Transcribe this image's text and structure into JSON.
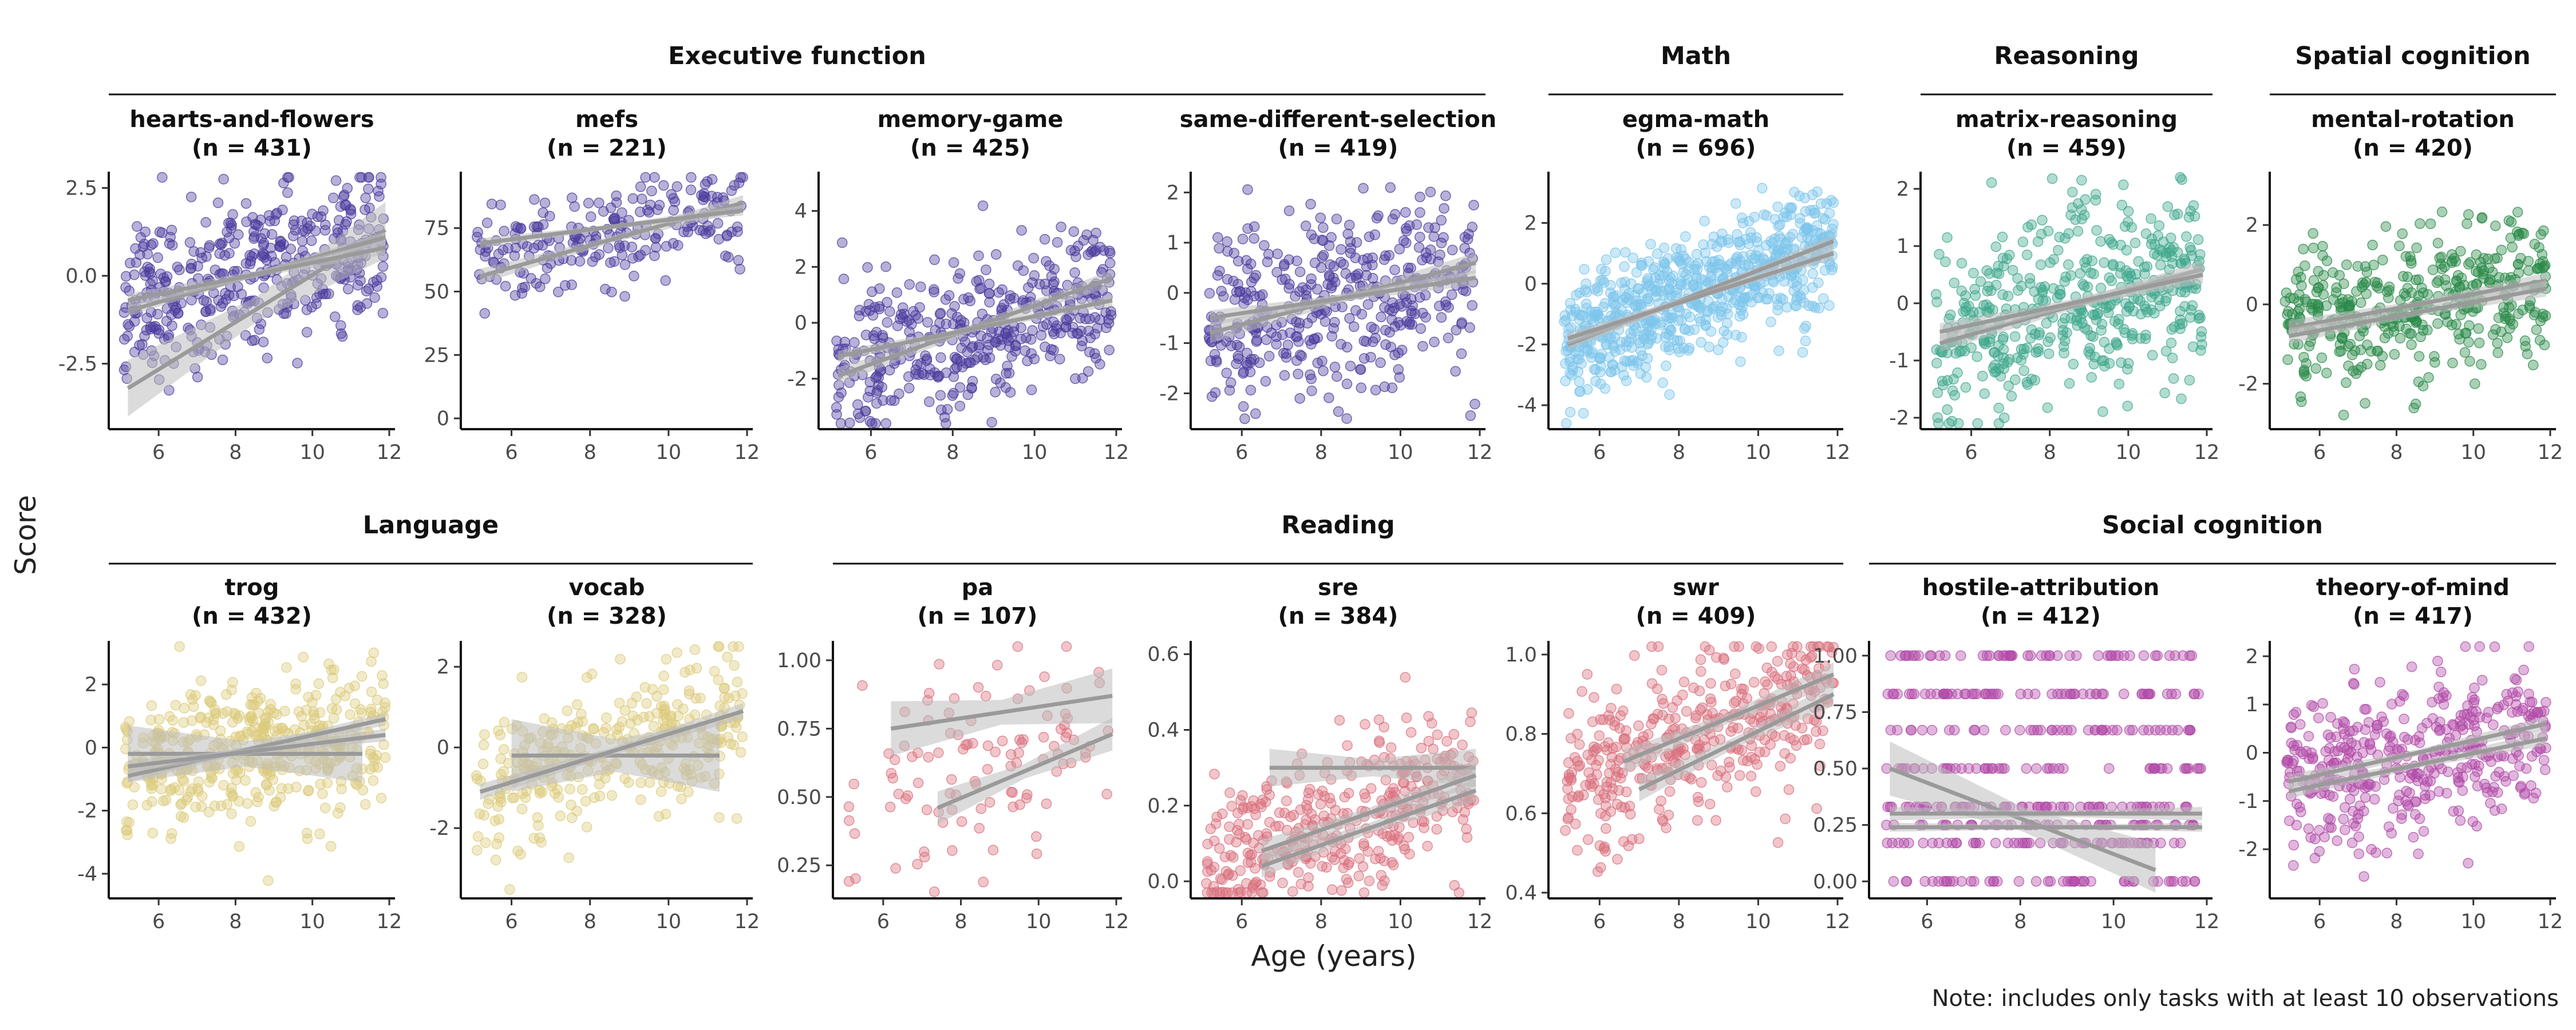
{
  "figure": {
    "x_axis_label": "Age (years)",
    "y_axis_label": "Score",
    "note": "Note: includes only tasks with at least 10 observations",
    "fit_line_color": "#9a9a9a",
    "ribbon_color": "#bdbdbd",
    "domain_groups": [
      {
        "name": "Executive function",
        "panels": [
          "hearts-and-flowers",
          "mefs",
          "memory-game",
          "same-different-selection"
        ]
      },
      {
        "name": "Math",
        "panels": [
          "egma-math"
        ]
      },
      {
        "name": "Reasoning",
        "panels": [
          "matrix-reasoning"
        ]
      },
      {
        "name": "Spatial cognition",
        "panels": [
          "mental-rotation"
        ]
      },
      {
        "name": "Language",
        "panels": [
          "trog",
          "vocab"
        ]
      },
      {
        "name": "Reading",
        "panels": [
          "pa",
          "sre",
          "swr"
        ]
      },
      {
        "name": "Social cognition",
        "panels": [
          "hostile-attribution",
          "theory-of-mind"
        ]
      }
    ]
  },
  "chart_data": [
    {
      "type": "scatter",
      "task": "hearts-and-flowers",
      "n_label": "(n = 431)",
      "n": 431,
      "group": "Executive function",
      "color": "#4b3c9e",
      "x_range": [
        5,
        12
      ],
      "y_range": [
        -4.2,
        2.8
      ],
      "x_ticks": [
        6,
        8,
        10,
        12
      ],
      "y_ticks": [
        -2.5,
        0.0,
        2.5
      ],
      "y_tick_labels": [
        "-2.5",
        "0.0",
        "2.5"
      ],
      "y_center": [
        -0.9,
        1.0
      ],
      "y_spread": 1.1,
      "fit_lines": [
        {
          "x": [
            5.2,
            11.9
          ],
          "y": [
            -3.2,
            1.3
          ],
          "band": 0.8
        },
        {
          "x": [
            5.2,
            11.9
          ],
          "y": [
            -1.0,
            1.1
          ],
          "band": 0.15
        },
        {
          "x": [
            5.2,
            11.9
          ],
          "y": [
            -0.7,
            0.8
          ],
          "band": 0.2
        }
      ]
    },
    {
      "type": "scatter",
      "task": "mefs",
      "n_label": "(n = 221)",
      "n": 221,
      "group": "Executive function",
      "color": "#4b3c9e",
      "x_range": [
        5,
        12
      ],
      "y_range": [
        -2,
        95
      ],
      "x_ticks": [
        6,
        8,
        10,
        12
      ],
      "y_ticks": [
        0,
        25,
        50,
        75
      ],
      "y_tick_labels": [
        "0",
        "25",
        "50",
        "75"
      ],
      "y_center": [
        62,
        82
      ],
      "y_spread": 10,
      "fit_lines": [
        {
          "x": [
            5.2,
            11.9
          ],
          "y": [
            56,
            85
          ],
          "band": 3
        },
        {
          "x": [
            5.2,
            11.9
          ],
          "y": [
            69,
            82
          ],
          "band": 2
        }
      ]
    },
    {
      "type": "scatter",
      "task": "memory-game",
      "n_label": "(n = 425)",
      "n": 425,
      "group": "Executive function",
      "color": "#4b3c9e",
      "x_range": [
        5,
        12
      ],
      "y_range": [
        -3.6,
        5.2
      ],
      "x_ticks": [
        6,
        8,
        10,
        12
      ],
      "y_ticks": [
        -2,
        0,
        2,
        4
      ],
      "y_tick_labels": [
        "-2",
        "0",
        "2",
        "4"
      ],
      "y_center": [
        -1.5,
        1.0
      ],
      "y_spread": 1.3,
      "fit_lines": [
        {
          "x": [
            5.2,
            11.9
          ],
          "y": [
            -1.9,
            1.6
          ],
          "band": 0.3
        },
        {
          "x": [
            5.2,
            11.9
          ],
          "y": [
            -1.2,
            0.8
          ],
          "band": 0.2
        }
      ]
    },
    {
      "type": "scatter",
      "task": "same-different-selection",
      "n_label": "(n = 419)",
      "n": 419,
      "group": "Executive function",
      "color": "#4b3c9e",
      "x_range": [
        5,
        12
      ],
      "y_range": [
        -2.6,
        2.3
      ],
      "x_ticks": [
        6,
        8,
        10,
        12
      ],
      "y_ticks": [
        -2,
        -1,
        0,
        1,
        2
      ],
      "y_tick_labels": [
        "-2",
        "-1",
        "0",
        "1",
        "2"
      ],
      "y_center": [
        -0.6,
        0.4
      ],
      "y_spread": 0.9,
      "fit_lines": [
        {
          "x": [
            5.2,
            11.9
          ],
          "y": [
            -0.8,
            0.6
          ],
          "band": 0.2
        },
        {
          "x": [
            5.2,
            11.9
          ],
          "y": [
            -0.5,
            0.3
          ],
          "band": 0.15
        }
      ]
    },
    {
      "type": "scatter",
      "task": "egma-math",
      "n_label": "(n = 696)",
      "n": 696,
      "group": "Math",
      "color": "#7ec5ec",
      "x_range": [
        5,
        12
      ],
      "y_range": [
        -4.6,
        3.5
      ],
      "x_ticks": [
        6,
        8,
        10,
        12
      ],
      "y_ticks": [
        -4,
        -2,
        0,
        2
      ],
      "y_tick_labels": [
        "-4",
        "-2",
        "0",
        "2"
      ],
      "y_center": [
        -2.0,
        1.5
      ],
      "y_spread": 1.0,
      "fit_lines": [
        {
          "x": [
            5.2,
            11.9
          ],
          "y": [
            -2.0,
            1.4
          ],
          "band": 0.2
        },
        {
          "x": [
            5.2,
            11.9
          ],
          "y": [
            -1.8,
            1.0
          ],
          "band": 0.2
        }
      ]
    },
    {
      "type": "scatter",
      "task": "matrix-reasoning",
      "n_label": "(n = 459)",
      "n": 459,
      "group": "Reasoning",
      "color": "#3fa78d",
      "x_range": [
        5,
        12
      ],
      "y_range": [
        -2.1,
        2.2
      ],
      "x_ticks": [
        6,
        8,
        10,
        12
      ],
      "y_ticks": [
        -2,
        -1,
        0,
        1,
        2
      ],
      "y_tick_labels": [
        "-2",
        "-1",
        "0",
        "1",
        "2"
      ],
      "y_center": [
        -0.6,
        0.6
      ],
      "y_spread": 0.8,
      "fit_lines": [
        {
          "x": [
            5.2,
            11.9
          ],
          "y": [
            -0.7,
            0.6
          ],
          "band": 0.15
        },
        {
          "x": [
            5.2,
            11.9
          ],
          "y": [
            -0.5,
            0.5
          ],
          "band": 0.15
        }
      ]
    },
    {
      "type": "scatter",
      "task": "mental-rotation",
      "n_label": "(n = 420)",
      "n": 420,
      "group": "Spatial cognition",
      "color": "#2a8a48",
      "x_range": [
        5,
        12
      ],
      "y_range": [
        -3.0,
        3.2
      ],
      "x_ticks": [
        6,
        8,
        10,
        12
      ],
      "y_ticks": [
        -2,
        0,
        2
      ],
      "y_tick_labels": [
        "-2",
        "0",
        "2"
      ],
      "y_center": [
        -0.5,
        0.6
      ],
      "y_spread": 0.9,
      "fit_lines": [
        {
          "x": [
            5.2,
            11.9
          ],
          "y": [
            -0.6,
            0.6
          ],
          "band": 0.2
        },
        {
          "x": [
            5.2,
            11.9
          ],
          "y": [
            -0.8,
            0.4
          ],
          "band": 0.2
        }
      ]
    },
    {
      "type": "scatter",
      "task": "trog",
      "n_label": "(n = 432)",
      "n": 432,
      "group": "Language",
      "color": "#dccb7b",
      "x_range": [
        5,
        12
      ],
      "y_range": [
        -4.6,
        3.2
      ],
      "x_ticks": [
        6,
        8,
        10,
        12
      ],
      "y_ticks": [
        -4,
        -2,
        0,
        2
      ],
      "y_tick_labels": [
        "-4",
        "-2",
        "0",
        "2"
      ],
      "y_center": [
        -0.6,
        0.5
      ],
      "y_spread": 1.1,
      "fit_lines": [
        {
          "x": [
            5.2,
            11.3
          ],
          "y": [
            -0.2,
            -0.2
          ],
          "band": 0.9
        },
        {
          "x": [
            5.2,
            11.9
          ],
          "y": [
            -0.9,
            0.9
          ],
          "band": 0.2
        },
        {
          "x": [
            5.2,
            11.9
          ],
          "y": [
            -0.6,
            0.4
          ],
          "band": 0.2
        }
      ]
    },
    {
      "type": "scatter",
      "task": "vocab",
      "n_label": "(n = 328)",
      "n": 328,
      "group": "Language",
      "color": "#dccb7b",
      "x_range": [
        5,
        12
      ],
      "y_range": [
        -3.6,
        2.5
      ],
      "x_ticks": [
        6,
        8,
        10,
        12
      ],
      "y_ticks": [
        -2,
        0,
        2
      ],
      "y_tick_labels": [
        "-2",
        "0",
        "2"
      ],
      "y_center": [
        -1.0,
        0.8
      ],
      "y_spread": 0.9,
      "fit_lines": [
        {
          "x": [
            6.0,
            11.3
          ],
          "y": [
            -0.2,
            -0.2
          ],
          "band": 0.9
        },
        {
          "x": [
            5.2,
            11.9
          ],
          "y": [
            -1.1,
            0.9
          ],
          "band": 0.2
        }
      ]
    },
    {
      "type": "scatter",
      "task": "pa",
      "n_label": "(n = 107)",
      "n": 107,
      "group": "Reading",
      "color": "#d9707e",
      "x_range": [
        5,
        12
      ],
      "y_range": [
        0.15,
        1.05
      ],
      "x_ticks": [
        6,
        8,
        10,
        12
      ],
      "y_ticks": [
        0.25,
        0.5,
        0.75,
        1.0
      ],
      "y_tick_labels": [
        "0.25",
        "0.50",
        "0.75",
        "1.00"
      ],
      "y_center": [
        0.5,
        0.78
      ],
      "y_spread": 0.18,
      "fit_lines": [
        {
          "x": [
            6.2,
            11.9
          ],
          "y": [
            0.75,
            0.87
          ],
          "band": 0.1
        },
        {
          "x": [
            7.4,
            11.9
          ],
          "y": [
            0.46,
            0.73
          ],
          "band": 0.06
        }
      ]
    },
    {
      "type": "scatter",
      "task": "sre",
      "n_label": "(n = 384)",
      "n": 384,
      "group": "Reading",
      "color": "#d9707e",
      "x_range": [
        5,
        12
      ],
      "y_range": [
        -0.03,
        0.62
      ],
      "x_ticks": [
        6,
        8,
        10,
        12
      ],
      "y_ticks": [
        0.0,
        0.2,
        0.4,
        0.6
      ],
      "y_tick_labels": [
        "0.0",
        "0.2",
        "0.4",
        "0.6"
      ],
      "y_center": [
        0.05,
        0.28
      ],
      "y_spread": 0.1,
      "fit_lines": [
        {
          "x": [
            6.7,
            11.9
          ],
          "y": [
            0.3,
            0.3
          ],
          "band": 0.05
        },
        {
          "x": [
            6.5,
            11.9
          ],
          "y": [
            0.04,
            0.24
          ],
          "band": 0.03
        },
        {
          "x": [
            6.5,
            11.9
          ],
          "y": [
            0.08,
            0.28
          ],
          "band": 0.03
        }
      ]
    },
    {
      "type": "scatter",
      "task": "swr",
      "n_label": "(n = 409)",
      "n": 409,
      "group": "Reading",
      "color": "#d9707e",
      "x_range": [
        5,
        12
      ],
      "y_range": [
        0.4,
        1.02
      ],
      "x_ticks": [
        6,
        8,
        10,
        12
      ],
      "y_ticks": [
        0.4,
        0.6,
        0.8,
        1.0
      ],
      "y_tick_labels": [
        "0.4",
        "0.6",
        "0.8",
        "1.0"
      ],
      "y_center": [
        0.68,
        0.92
      ],
      "y_spread": 0.1,
      "fit_lines": [
        {
          "x": [
            6.6,
            11.9
          ],
          "y": [
            0.73,
            0.95
          ],
          "band": 0.03
        },
        {
          "x": [
            7.0,
            11.9
          ],
          "y": [
            0.66,
            0.9
          ],
          "band": 0.03
        }
      ]
    },
    {
      "type": "scatter",
      "task": "hostile-attribution",
      "n_label": "(n = 412)",
      "n": 412,
      "group": "Social cognition",
      "color": "#b24aa8",
      "x_range": [
        5,
        12
      ],
      "y_range": [
        -0.05,
        1.04
      ],
      "x_ticks": [
        6,
        8,
        10,
        12
      ],
      "y_ticks": [
        0.0,
        0.25,
        0.5,
        0.75,
        1.0
      ],
      "y_tick_labels": [
        "0.00",
        "0.25",
        "0.50",
        "0.75",
        "1.00"
      ],
      "discrete_levels": [
        0,
        0.17,
        0.25,
        0.33,
        0.5,
        0.67,
        0.83,
        1.0
      ],
      "fit_lines": [
        {
          "x": [
            5.2,
            10.9
          ],
          "y": [
            0.5,
            0.05
          ],
          "band": 0.12
        },
        {
          "x": [
            5.2,
            11.9
          ],
          "y": [
            0.3,
            0.3
          ],
          "band": 0.03
        },
        {
          "x": [
            5.2,
            11.9
          ],
          "y": [
            0.24,
            0.24
          ],
          "band": 0.02
        }
      ]
    },
    {
      "type": "scatter",
      "task": "theory-of-mind",
      "n_label": "(n = 417)",
      "n": 417,
      "group": "Social cognition",
      "color": "#b24aa8",
      "x_range": [
        5,
        12
      ],
      "y_range": [
        -2.9,
        2.2
      ],
      "x_ticks": [
        6,
        8,
        10,
        12
      ],
      "y_ticks": [
        -2,
        -1,
        0,
        1,
        2
      ],
      "y_tick_labels": [
        "-2",
        "-1",
        "0",
        "1",
        "2"
      ],
      "y_center": [
        -0.7,
        0.6
      ],
      "y_spread": 0.8,
      "fit_lines": [
        {
          "x": [
            5.2,
            11.9
          ],
          "y": [
            -0.6,
            0.6
          ],
          "band": 0.15
        },
        {
          "x": [
            5.2,
            11.9
          ],
          "y": [
            -0.8,
            0.3
          ],
          "band": 0.15
        }
      ]
    }
  ]
}
